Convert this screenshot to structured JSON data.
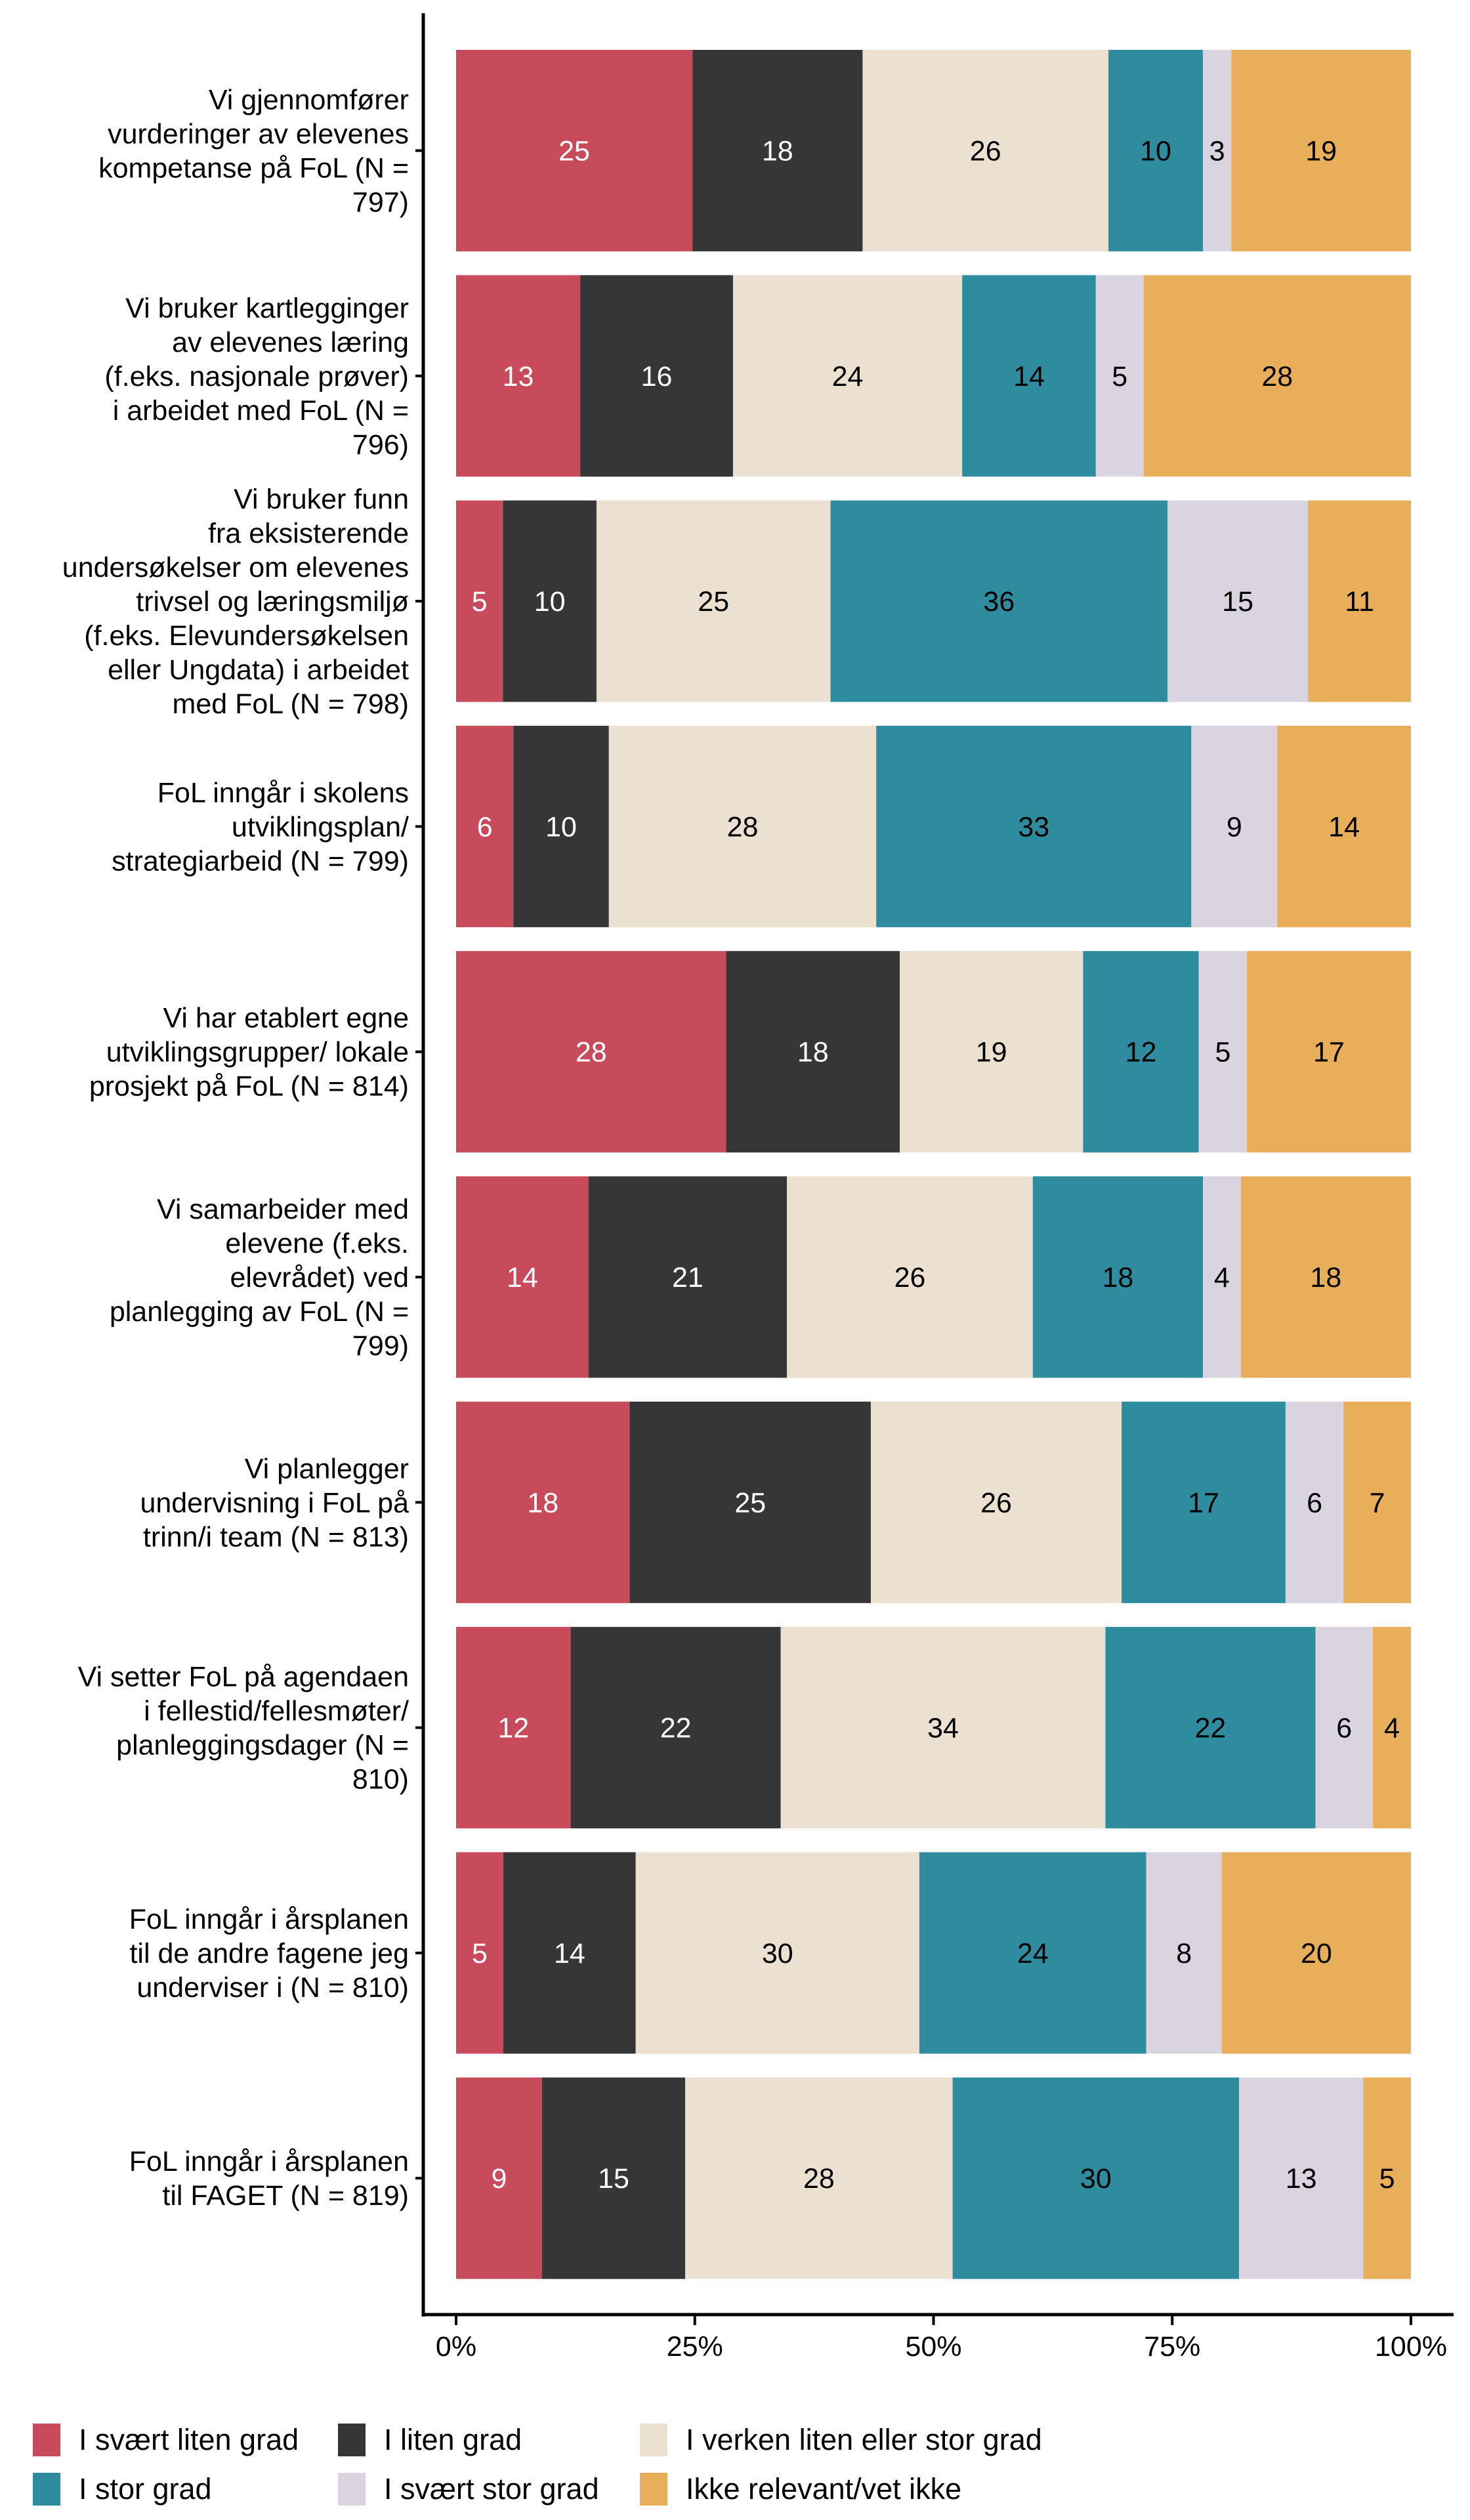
{
  "chart_data": {
    "type": "bar",
    "orientation": "horizontal",
    "stacked": true,
    "title": "",
    "xlabel": "",
    "ylabel": "",
    "xlim": [
      0,
      100
    ],
    "x_ticks": [
      "0%",
      "25%",
      "50%",
      "75%",
      "100%"
    ],
    "grid": false,
    "legend_position": "bottom",
    "categories": [
      [
        "Vi gjennomfører",
        "vurderinger av elevenes",
        "kompetanse på FoL (N =",
        "797)"
      ],
      [
        "Vi bruker kartlegginger",
        "av elevenes læring",
        "(f.eks. nasjonale prøver)",
        "i arbeidet med FoL (N =",
        "796)"
      ],
      [
        "Vi bruker funn",
        "fra eksisterende",
        "undersøkelser om elevenes",
        "trivsel og læringsmiljø",
        "(f.eks. Elevundersøkelsen",
        "eller Ungdata) i arbeidet",
        "med FoL (N = 798)"
      ],
      [
        "FoL inngår i skolens",
        "utviklingsplan/",
        "strategiarbeid (N = 799)"
      ],
      [
        "Vi har etablert egne",
        "utviklingsgrupper/ lokale",
        "prosjekt på FoL (N = 814)"
      ],
      [
        "Vi samarbeider med",
        "elevene (f.eks.",
        "elevrådet) ved",
        "planlegging av FoL (N =",
        "799)"
      ],
      [
        "Vi planlegger",
        "undervisning i FoL på",
        "trinn/i team (N = 813)"
      ],
      [
        "Vi setter FoL på agendaen",
        "i fellestid/fellesmøter/",
        "planleggingsdager (N =",
        "810)"
      ],
      [
        "FoL inngår i årsplanen",
        "til de andre fagene jeg",
        "underviser i (N = 810)"
      ],
      [
        "FoL inngår i årsplanen",
        "til FAGET (N = 819)"
      ]
    ],
    "series": [
      {
        "name": "I svært liten grad",
        "color": "#C84B5B",
        "label_color": "#FFFFFF",
        "values": [
          25,
          13,
          5,
          6,
          28,
          14,
          18,
          12,
          5,
          9
        ]
      },
      {
        "name": "I liten grad",
        "color": "#363636",
        "label_color": "#FFFFFF",
        "values": [
          18,
          16,
          10,
          10,
          18,
          21,
          25,
          22,
          14,
          15
        ]
      },
      {
        "name": "I verken liten eller stor grad",
        "color": "#ECE1D1",
        "label_color": "#000000",
        "values": [
          26,
          24,
          25,
          28,
          19,
          26,
          26,
          34,
          30,
          28
        ]
      },
      {
        "name": "I stor grad",
        "color": "#2E8C9E",
        "label_color": "#000000",
        "values": [
          10,
          14,
          36,
          33,
          12,
          18,
          17,
          22,
          24,
          30
        ]
      },
      {
        "name": "I svært stor grad",
        "color": "#DAD3E0",
        "label_color": "#000000",
        "values": [
          3,
          5,
          15,
          9,
          5,
          4,
          6,
          6,
          8,
          13
        ]
      },
      {
        "name": "Ikke relevant/vet ikke",
        "color": "#E8AE5A",
        "label_color": "#000000",
        "values": [
          19,
          28,
          11,
          14,
          17,
          18,
          7,
          4,
          20,
          5
        ]
      }
    ]
  }
}
